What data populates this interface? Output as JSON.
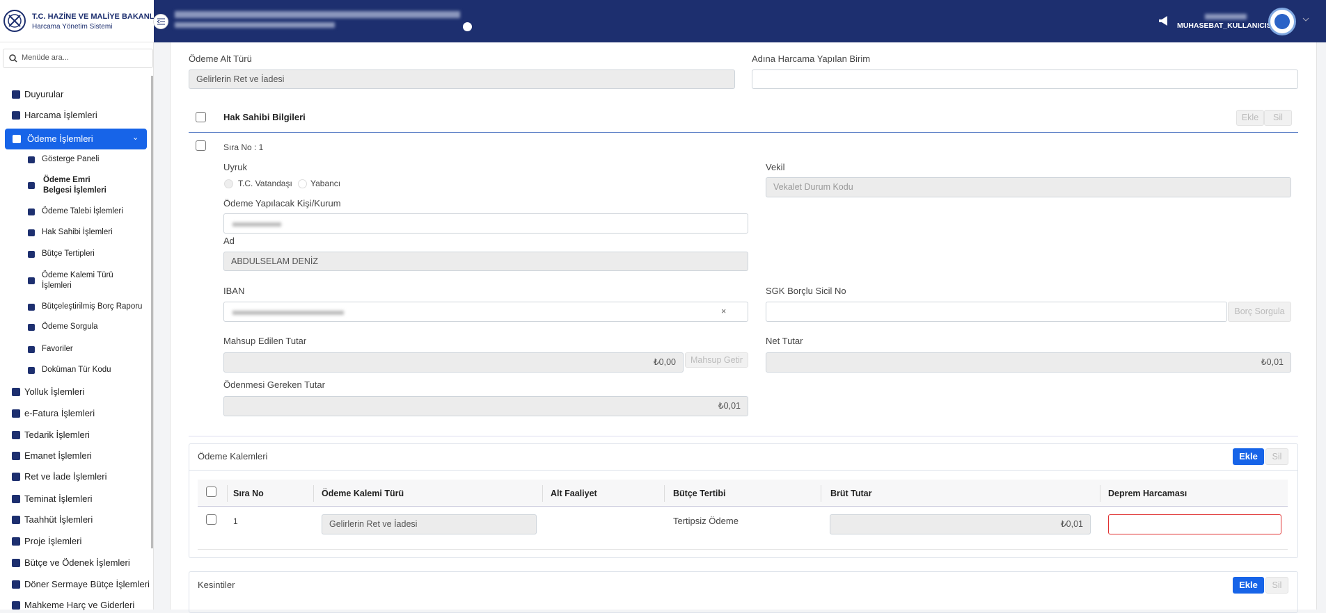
{
  "header": {
    "ministry": "T.C. HAZİNE VE MALİYE BAKANLIĞI",
    "system": "Harcama Yönetim Sistemi",
    "user": "MUHASEBAT_KULLANICISI"
  },
  "sidebar": {
    "search_placeholder": "Menüde ara...",
    "items": [
      {
        "label": "Duyurular"
      },
      {
        "label": "Harcama İşlemleri"
      },
      {
        "label": "Ödeme İşlemleri",
        "children": [
          "Gösterge Paneli",
          "Ödeme Emri Belgesi İşlemleri",
          "Ödeme Talebi İşlemleri",
          "Hak Sahibi İşlemleri",
          "Bütçe Tertipleri",
          "Ödeme Kalemi Türü İşlemleri",
          "Bütçeleştirilmiş Borç Raporu",
          "Ödeme Sorgula",
          "Favoriler",
          "Doküman Tür Kodu"
        ]
      },
      {
        "label": "Yolluk İşlemleri"
      },
      {
        "label": "e-Fatura İşlemleri"
      },
      {
        "label": "Tedarik İşlemleri"
      },
      {
        "label": "Emanet İşlemleri"
      },
      {
        "label": "Ret ve İade İşlemleri"
      },
      {
        "label": "Teminat İşlemleri"
      },
      {
        "label": "Taahhüt İşlemleri"
      },
      {
        "label": "Proje İşlemleri"
      },
      {
        "label": "Bütçe ve Ödenek İşlemleri"
      },
      {
        "label": "Döner Sermaye Bütçe İşlemleri"
      },
      {
        "label": "Mahkeme Harç ve Giderleri"
      }
    ]
  },
  "form": {
    "payment_subtype": {
      "label": "Ödeme Alt Türü",
      "value": "Gelirlerin Ret ve İadesi"
    },
    "spending_unit": {
      "label": "Adına Harcama Yapılan Birim"
    },
    "beneficiary": {
      "title": "Hak Sahibi Bilgileri",
      "add": "Ekle",
      "delete": "Sil",
      "row_no": "Sıra No : 1",
      "nationality": {
        "label": "Uyruk",
        "options": [
          "T.C. Vatandaşı",
          "Yabancı"
        ]
      },
      "proxy": {
        "label": "Vekil",
        "placeholder": "Vekalet Durum Kodu"
      },
      "payee": {
        "label": "Ödeme Yapılacak Kişi/Kurum"
      },
      "name": {
        "label": "Ad",
        "value": "ABDULSELAM DENİZ"
      },
      "iban": {
        "label": "IBAN"
      },
      "sgk": {
        "label": "SGK Borçlu Sicil No",
        "button": "Borç Sorgula"
      },
      "offset_amount": {
        "label": "Mahsup Edilen Tutar",
        "value": "₺0,00",
        "button": "Mahsup Getir"
      },
      "net_amount": {
        "label": "Net Tutar",
        "value": "₺0,01"
      },
      "payable_amount": {
        "label": "Ödenmesi Gereken Tutar",
        "value": "₺0,01"
      }
    },
    "payment_items": {
      "title": "Ödeme Kalemleri",
      "add": "Ekle",
      "delete": "Sil",
      "columns": [
        "Sıra No",
        "Ödeme Kalemi Türü",
        "Alt Faaliyet",
        "Bütçe Tertibi",
        "Brüt Tutar",
        "Deprem Harcaması"
      ],
      "rows": [
        {
          "no": 1,
          "type": "Gelirlerin Ret ve İadesi",
          "budget": "Tertipsiz Ödeme",
          "gross": "₺0,01"
        }
      ]
    },
    "deductions": {
      "title": "Kesintiler",
      "add": "Ekle",
      "delete": "Sil"
    }
  }
}
